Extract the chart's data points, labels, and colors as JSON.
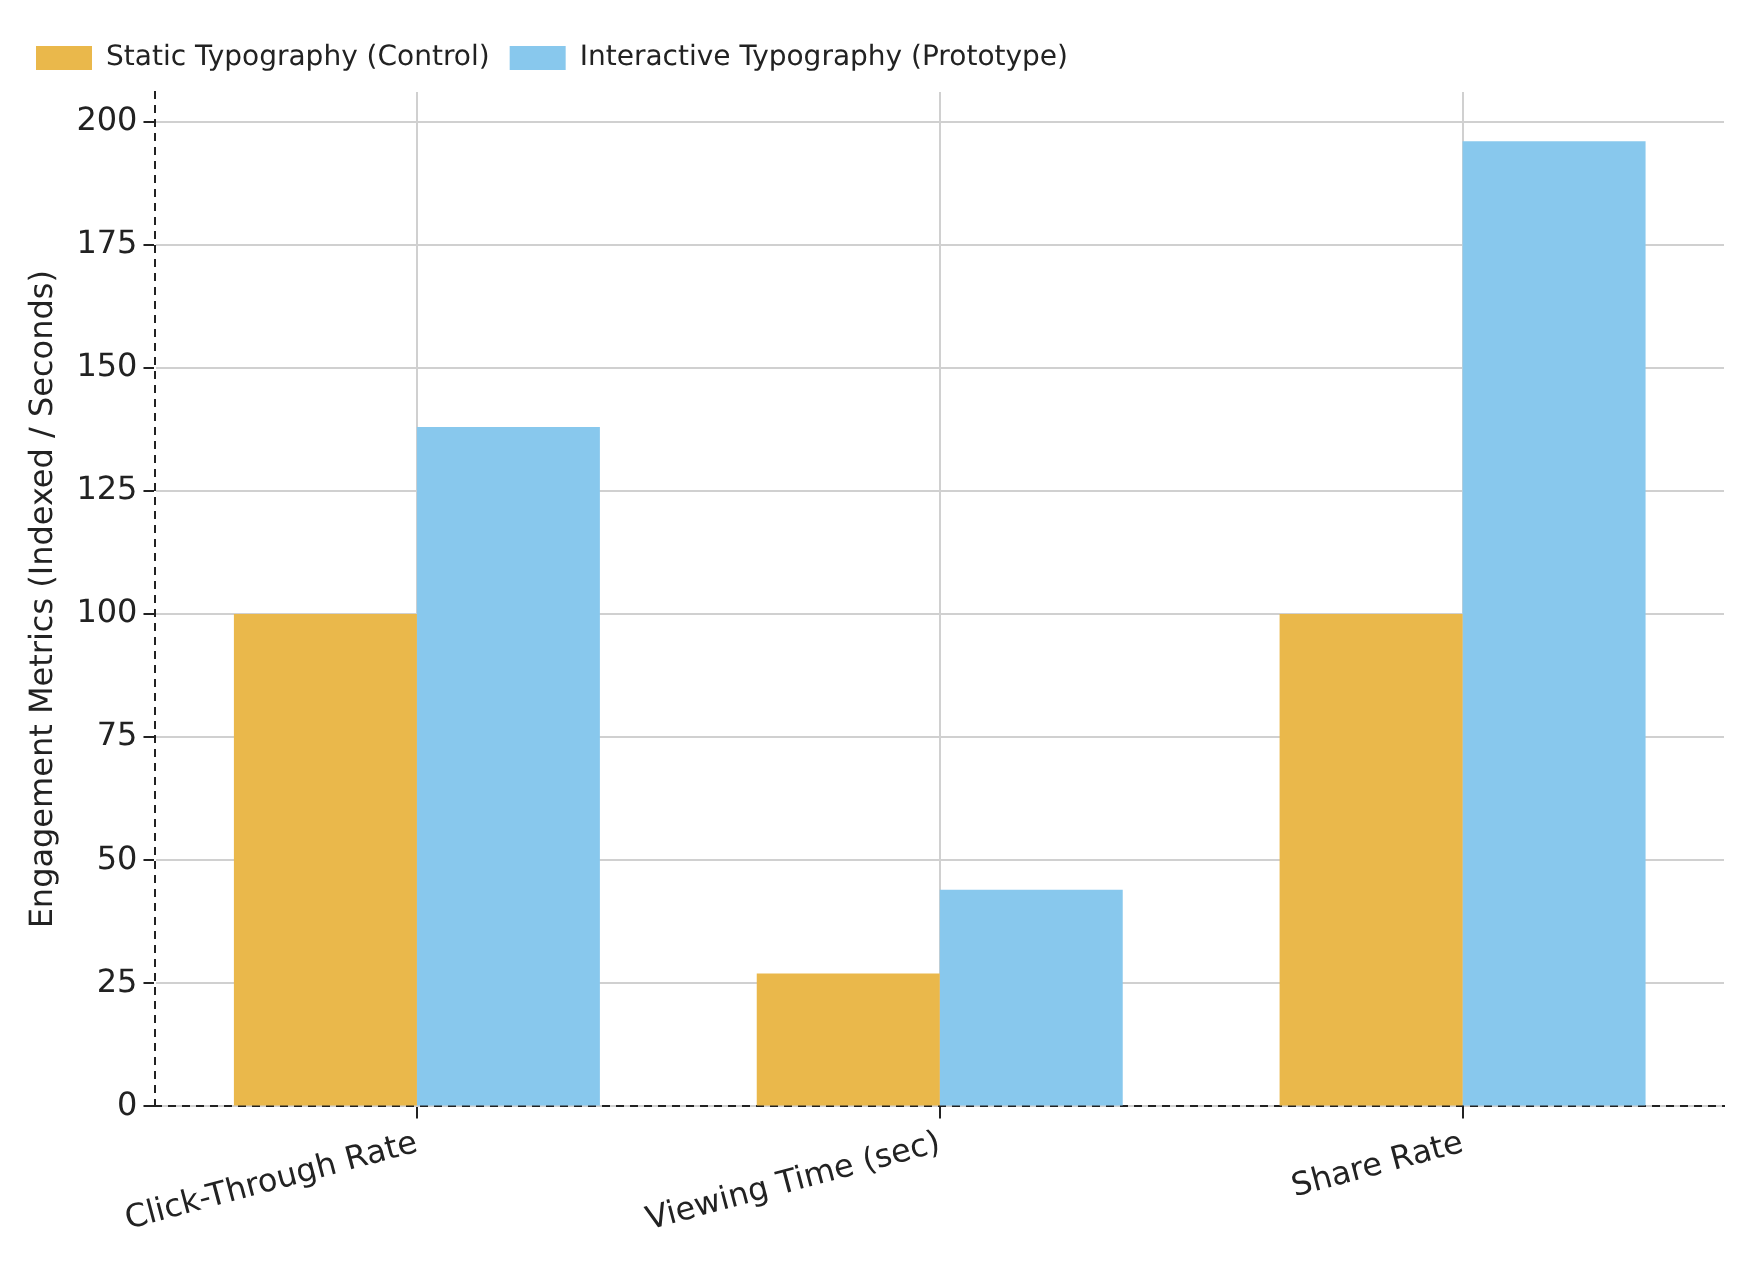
{
  "chart_data": {
    "type": "bar",
    "ylabel": "Engagement Metrics (Indexed / Seconds)",
    "categories": [
      "Click-Through Rate",
      "Viewing Time (sec)",
      "Share Rate"
    ],
    "series": [
      {
        "name": "Static Typography (Control)",
        "color": "#eab84b",
        "values": [
          100,
          27,
          100
        ]
      },
      {
        "name": "Interactive Typography (Prototype)",
        "color": "#88c8ed",
        "values": [
          138,
          44,
          196
        ]
      }
    ],
    "ylim": [
      0,
      206
    ],
    "yticks": [
      0,
      25,
      50,
      75,
      100,
      125,
      150,
      175,
      200
    ],
    "grid": true,
    "legend": "top left"
  }
}
